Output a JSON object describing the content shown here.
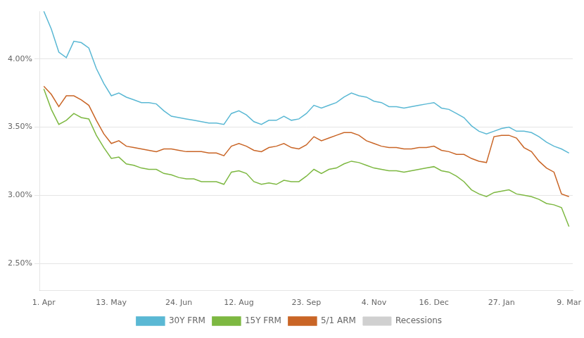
{
  "chart_data": {
    "type": "line",
    "categories": [
      "1. Apr",
      null,
      null,
      null,
      null,
      null,
      null,
      null,
      null,
      "13. May",
      null,
      null,
      null,
      null,
      null,
      null,
      null,
      null,
      "24. Jun",
      null,
      null,
      null,
      null,
      null,
      null,
      null,
      "12. Aug",
      null,
      null,
      null,
      null,
      null,
      null,
      null,
      null,
      "23. Sep",
      null,
      null,
      null,
      null,
      null,
      null,
      null,
      null,
      "4. Nov",
      null,
      null,
      null,
      null,
      null,
      null,
      null,
      "16. Dec",
      null,
      null,
      null,
      null,
      null,
      null,
      null,
      null,
      "27. Jan",
      null,
      null,
      null,
      null,
      null,
      null,
      null,
      null,
      "9. Mar"
    ],
    "series": [
      {
        "name": "30Y FRM",
        "color": "#5ab8d4",
        "values": [
          4.35,
          4.22,
          4.05,
          4.01,
          4.13,
          4.12,
          4.08,
          3.93,
          3.82,
          3.73,
          3.75,
          3.72,
          3.7,
          3.68,
          3.68,
          3.67,
          3.62,
          3.58,
          3.57,
          3.56,
          3.55,
          3.54,
          3.53,
          3.53,
          3.52,
          3.6,
          3.62,
          3.59,
          3.54,
          3.52,
          3.55,
          3.55,
          3.58,
          3.55,
          3.56,
          3.6,
          3.66,
          3.64,
          3.66,
          3.68,
          3.72,
          3.75,
          3.73,
          3.72,
          3.69,
          3.68,
          3.65,
          3.65,
          3.64,
          3.65,
          3.66,
          3.67,
          3.68,
          3.64,
          3.63,
          3.6,
          3.57,
          3.51,
          3.47,
          3.45,
          3.47,
          3.49,
          3.5,
          3.47,
          3.47,
          3.46,
          3.43,
          3.39,
          3.36,
          3.34,
          3.31
        ]
      },
      {
        "name": "15Y FRM",
        "color": "#7db841",
        "values": [
          3.78,
          3.63,
          3.52,
          3.55,
          3.6,
          3.57,
          3.56,
          3.44,
          3.35,
          3.27,
          3.28,
          3.23,
          3.22,
          3.2,
          3.19,
          3.19,
          3.16,
          3.15,
          3.13,
          3.12,
          3.12,
          3.1,
          3.1,
          3.1,
          3.08,
          3.17,
          3.18,
          3.16,
          3.1,
          3.08,
          3.09,
          3.08,
          3.11,
          3.1,
          3.1,
          3.14,
          3.19,
          3.16,
          3.19,
          3.2,
          3.23,
          3.25,
          3.24,
          3.22,
          3.2,
          3.19,
          3.18,
          3.18,
          3.17,
          3.18,
          3.19,
          3.2,
          3.21,
          3.18,
          3.17,
          3.14,
          3.1,
          3.04,
          3.01,
          2.99,
          3.02,
          3.03,
          3.04,
          3.01,
          3.0,
          2.99,
          2.97,
          2.94,
          2.93,
          2.91,
          2.77
        ]
      },
      {
        "name": "5/1 ARM",
        "color": "#c96526",
        "values": [
          3.8,
          3.74,
          3.65,
          3.73,
          3.73,
          3.7,
          3.66,
          3.55,
          3.45,
          3.38,
          3.4,
          3.36,
          3.35,
          3.34,
          3.33,
          3.32,
          3.34,
          3.34,
          3.33,
          3.32,
          3.32,
          3.32,
          3.31,
          3.31,
          3.29,
          3.36,
          3.38,
          3.36,
          3.33,
          3.32,
          3.35,
          3.36,
          3.38,
          3.35,
          3.34,
          3.37,
          3.43,
          3.4,
          3.42,
          3.44,
          3.46,
          3.46,
          3.44,
          3.4,
          3.38,
          3.36,
          3.35,
          3.35,
          3.34,
          3.34,
          3.35,
          3.35,
          3.36,
          3.33,
          3.32,
          3.3,
          3.3,
          3.27,
          3.25,
          3.24,
          3.43,
          3.44,
          3.44,
          3.42,
          3.35,
          3.32,
          3.25,
          3.2,
          3.17,
          3.01,
          2.99
        ]
      },
      {
        "name": "Recessions",
        "color": "#d0d0d0",
        "type": "bar",
        "values": [
          null,
          null,
          null,
          null,
          null,
          null,
          null,
          null,
          null,
          null,
          null,
          null,
          null,
          null,
          null,
          null,
          null,
          null,
          null,
          null,
          null,
          null,
          null,
          null,
          null,
          null,
          null,
          null,
          null,
          null,
          null,
          null,
          null,
          null,
          null,
          null,
          null,
          null,
          null,
          null,
          null,
          null,
          null,
          null,
          null,
          null,
          null,
          null,
          null,
          null,
          null,
          null,
          null,
          null,
          null,
          null,
          null,
          null,
          null,
          null,
          null,
          null,
          null,
          null,
          null,
          null,
          null,
          null,
          null,
          null,
          null
        ]
      }
    ],
    "ylim": [
      2.3,
      4.35
    ],
    "yticks": [
      {
        "value": 2.5,
        "label": "2.50%"
      },
      {
        "value": 3.0,
        "label": "3.00%"
      },
      {
        "value": 3.5,
        "label": "3.50%"
      },
      {
        "value": 4.0,
        "label": "4.00%"
      }
    ],
    "grid": "y",
    "legend": "bottom"
  }
}
